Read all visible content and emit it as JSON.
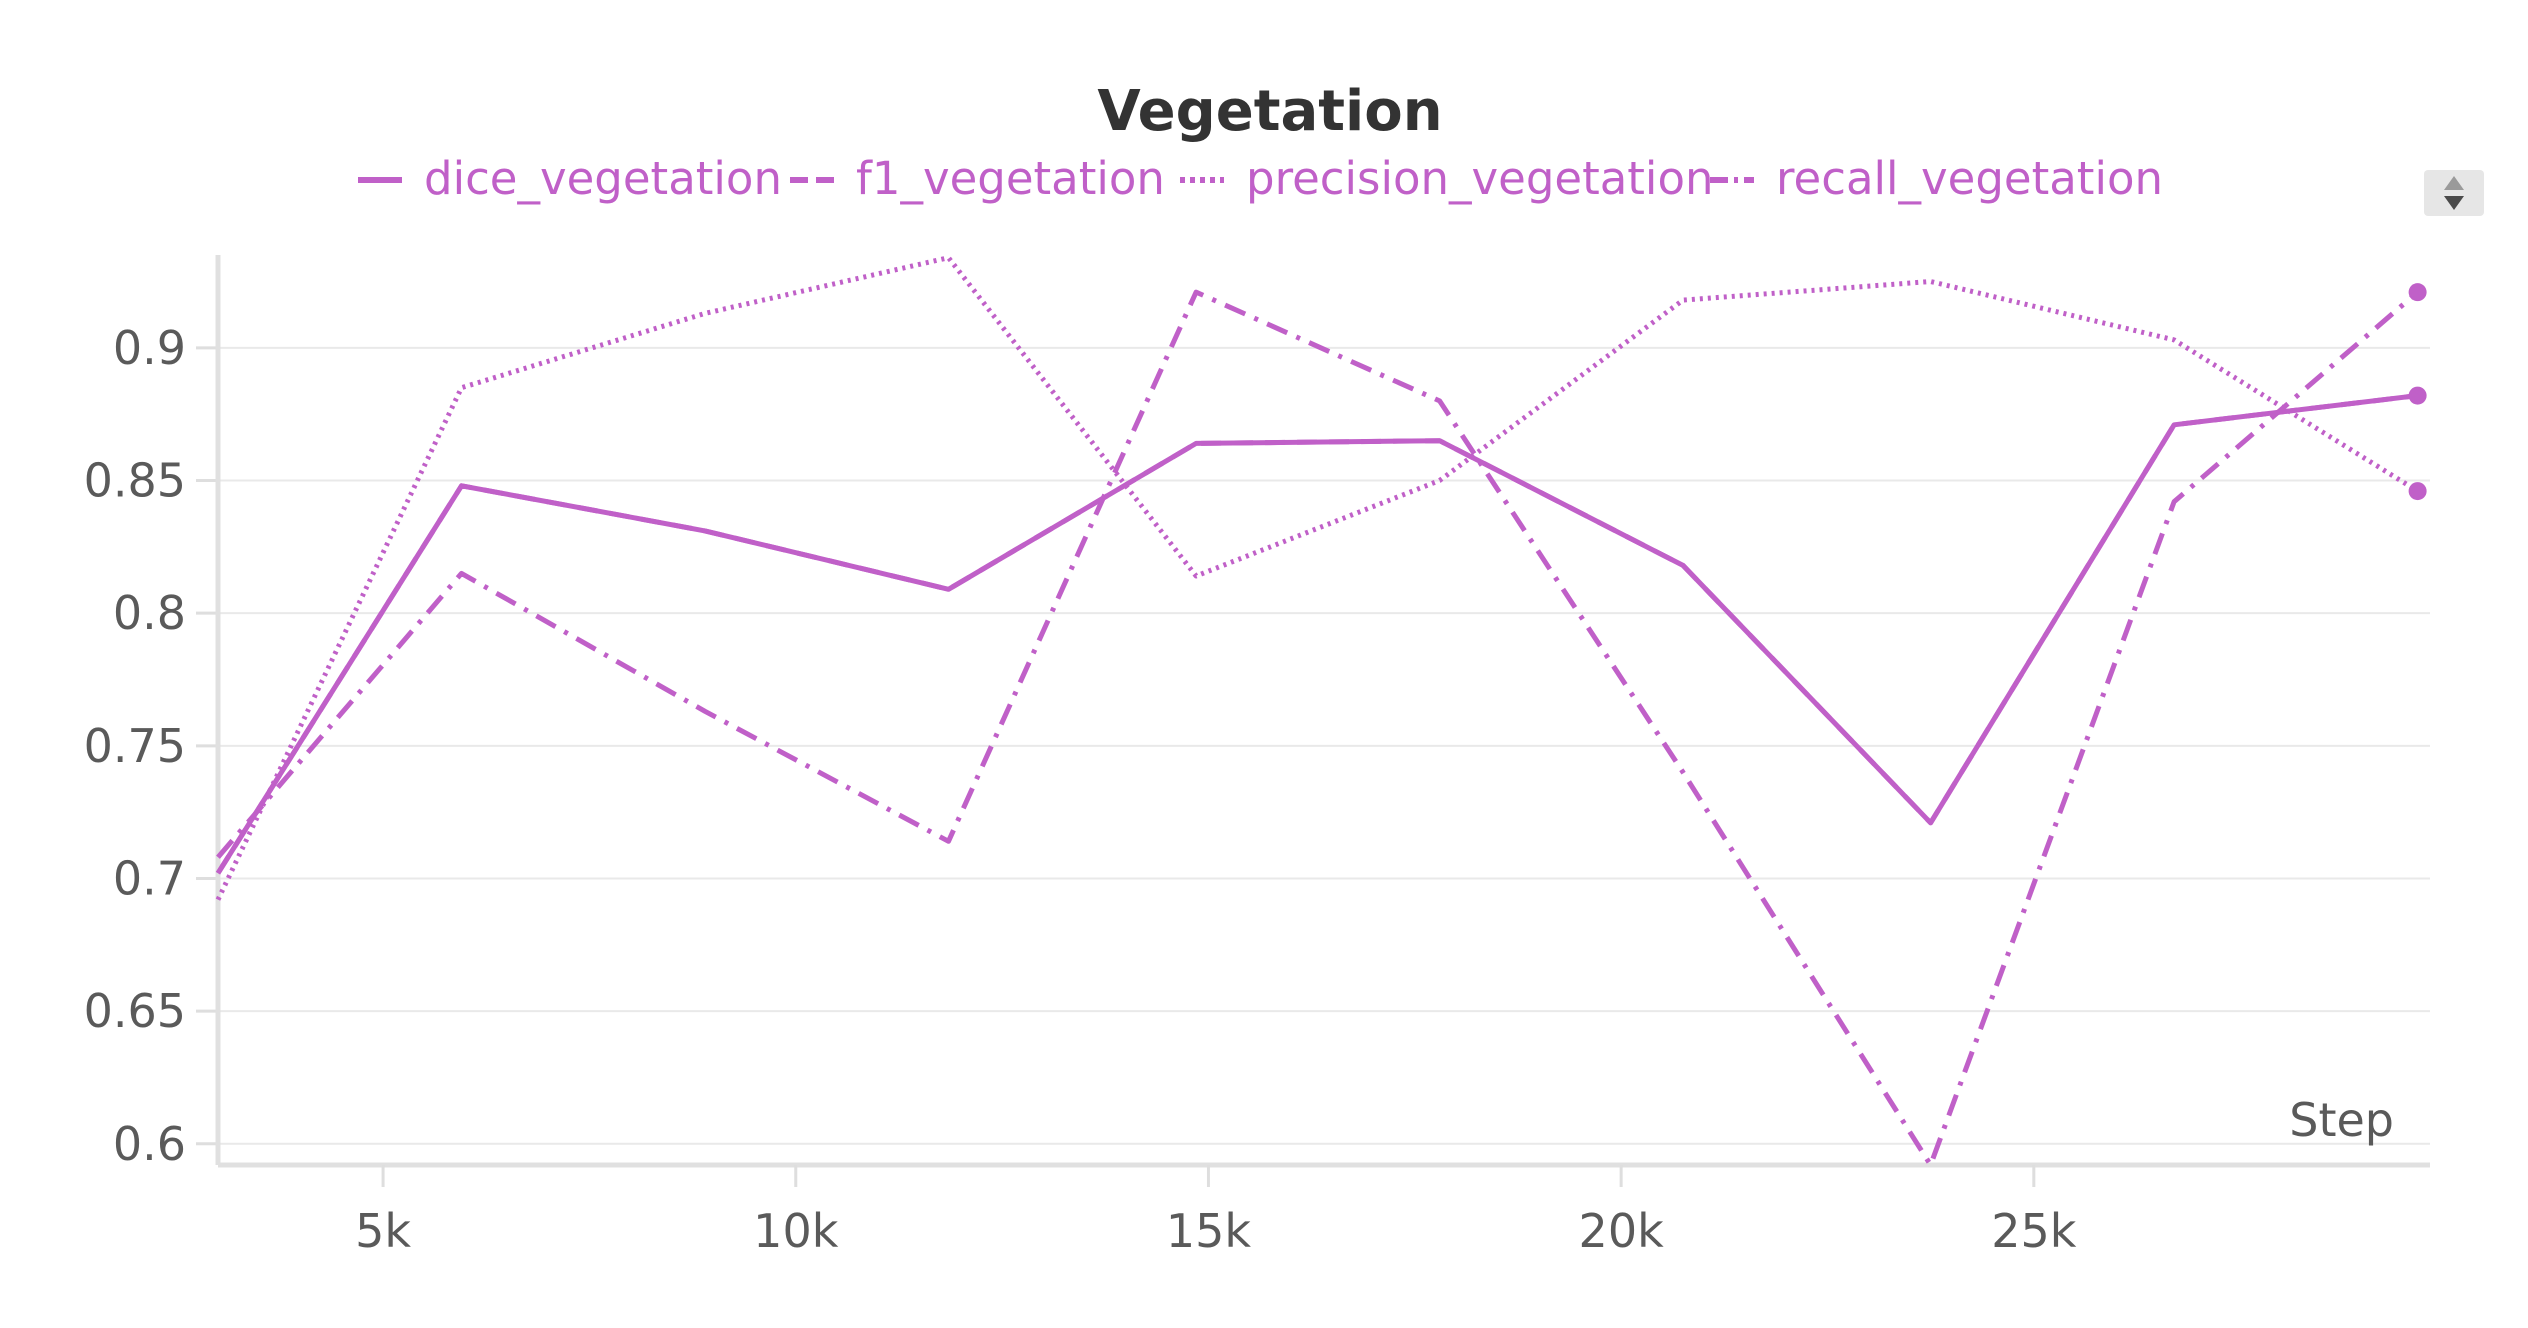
{
  "chart_data": {
    "type": "line",
    "title": "Vegetation",
    "xlabel": "Step",
    "ylabel": "",
    "xlim": [
      3000,
      29800
    ],
    "ylim": [
      0.592,
      0.935
    ],
    "x_ticks": [
      5000,
      10000,
      15000,
      20000,
      25000
    ],
    "x_tick_labels": [
      "5k",
      "10k",
      "15k",
      "20k",
      "25k"
    ],
    "y_ticks": [
      0.6,
      0.65,
      0.7,
      0.75,
      0.8,
      0.85,
      0.9
    ],
    "y_tick_labels": [
      "0.6",
      "0.65",
      "0.7",
      "0.75",
      "0.8",
      "0.85",
      "0.9"
    ],
    "grid": true,
    "legend_position": "top",
    "color": "#c060c8",
    "series": [
      {
        "name": "dice_vegetation",
        "dash": "solid",
        "x": [
          3000,
          5950,
          8900,
          11850,
          14850,
          17800,
          20750,
          23750,
          26700,
          29650
        ],
        "y": [
          0.702,
          0.848,
          0.831,
          0.809,
          0.864,
          0.865,
          0.818,
          0.721,
          0.871,
          0.882
        ],
        "end_marker": true
      },
      {
        "name": "f1_vegetation",
        "dash": "dashed",
        "x": [
          3000,
          5950,
          8900,
          11850,
          14850,
          17800,
          20750,
          23750,
          26700,
          29650
        ],
        "y": [
          0.702,
          0.848,
          0.831,
          0.809,
          0.864,
          0.865,
          0.818,
          0.721,
          0.871,
          0.882
        ],
        "end_marker": false
      },
      {
        "name": "precision_vegetation",
        "dash": "dotted",
        "x": [
          3000,
          5950,
          8900,
          11850,
          14850,
          17800,
          20750,
          23750,
          26700,
          29650
        ],
        "y": [
          0.692,
          0.885,
          0.913,
          0.934,
          0.814,
          0.85,
          0.918,
          0.925,
          0.903,
          0.846
        ],
        "end_marker": true
      },
      {
        "name": "recall_vegetation",
        "dash": "dashdot",
        "x": [
          3000,
          5950,
          8900,
          11850,
          14850,
          17800,
          20750,
          23750,
          26700,
          29650
        ],
        "y": [
          0.708,
          0.815,
          0.763,
          0.714,
          0.921,
          0.88,
          0.74,
          0.592,
          0.842,
          0.921
        ],
        "end_marker": true
      }
    ]
  }
}
